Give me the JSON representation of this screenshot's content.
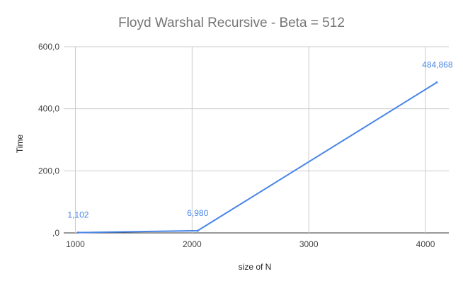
{
  "chart_data": {
    "type": "line",
    "title": "Floyd Warshal Recursive - Beta = 512",
    "xlabel": "size of N",
    "ylabel": "Time",
    "x": [
      1024,
      2048,
      4096
    ],
    "series": [
      {
        "values": [
          1.102,
          6.98,
          484.868
        ],
        "color": "#4a86e8"
      }
    ],
    "data_labels": [
      "1,102",
      "6,980",
      "484,868"
    ],
    "xlim": [
      900,
      4200
    ],
    "ylim": [
      0,
      600
    ],
    "x_ticks": [
      1000,
      2000,
      3000,
      4000
    ],
    "x_tick_labels": [
      "1000",
      "2000",
      "3000",
      "4000"
    ],
    "y_ticks": [
      0,
      200,
      400,
      600
    ],
    "y_tick_labels": [
      ",0",
      "200,0",
      "400,0",
      "600,0"
    ],
    "grid": true,
    "legend": "none"
  }
}
